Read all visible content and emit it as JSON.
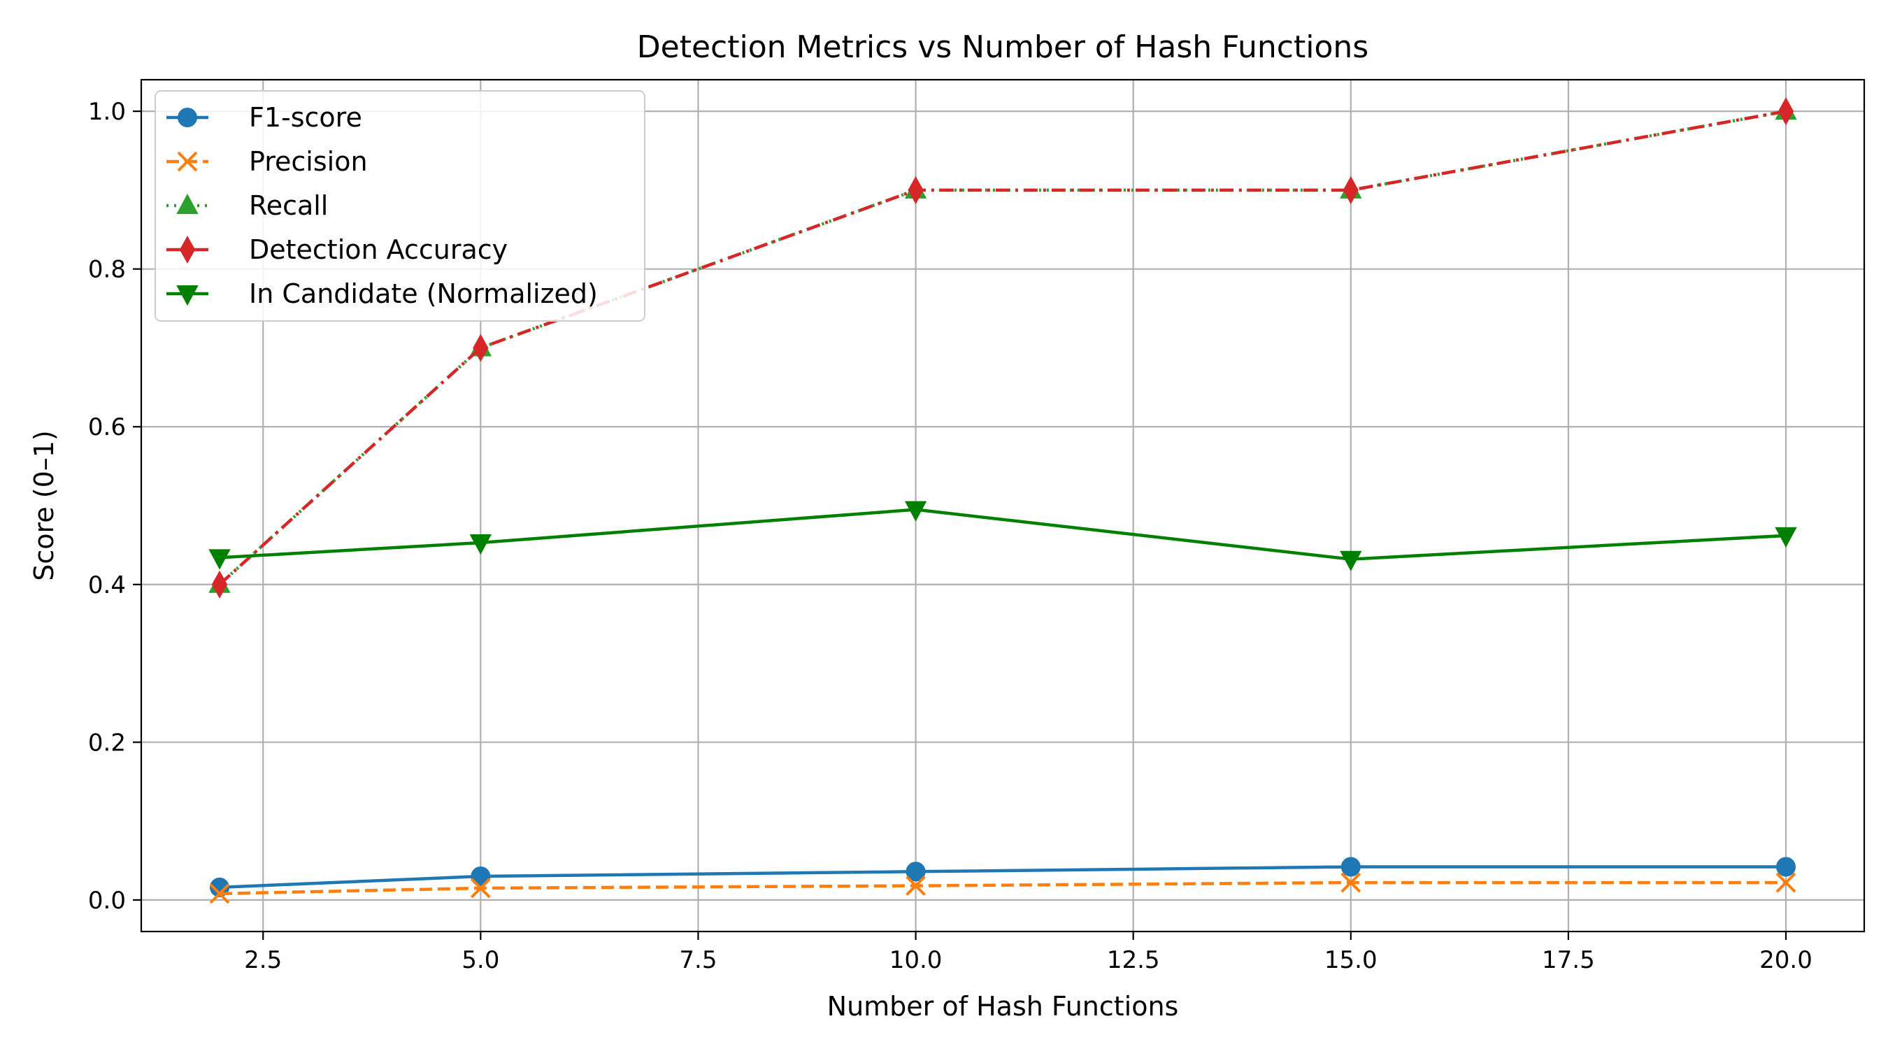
{
  "chart_data": {
    "type": "line",
    "title": "Detection Metrics vs Number of Hash Functions",
    "xlabel": "Number of Hash Functions",
    "ylabel": "Score (0–1)",
    "xlim": [
      1.1,
      20.9
    ],
    "ylim": [
      -0.04,
      1.04
    ],
    "x_ticks": [
      2.5,
      5.0,
      7.5,
      10.0,
      12.5,
      15.0,
      17.5,
      20.0
    ],
    "x_tick_labels": [
      "2.5",
      "5.0",
      "7.5",
      "10.0",
      "12.5",
      "15.0",
      "17.5",
      "20.0"
    ],
    "y_ticks": [
      0.0,
      0.2,
      0.4,
      0.6,
      0.8,
      1.0
    ],
    "y_tick_labels": [
      "0.0",
      "0.2",
      "0.4",
      "0.6",
      "0.8",
      "1.0"
    ],
    "grid": true,
    "legend_position": "top-left",
    "x": [
      2,
      5,
      10,
      15,
      20
    ],
    "series": [
      {
        "name": "F1-score",
        "values": [
          0.016,
          0.03,
          0.036,
          0.042,
          0.042
        ],
        "color": "#1f77b4",
        "dash": "solid",
        "marker": "circle"
      },
      {
        "name": "Precision",
        "values": [
          0.008,
          0.015,
          0.018,
          0.022,
          0.022
        ],
        "color": "#ff7f0e",
        "dash": "dashed",
        "marker": "x"
      },
      {
        "name": "Recall",
        "values": [
          0.4,
          0.7,
          0.9,
          0.9,
          1.0
        ],
        "color": "#2ca02c",
        "dash": "dotted",
        "marker": "triangle-up"
      },
      {
        "name": "Detection Accuracy",
        "values": [
          0.4,
          0.7,
          0.9,
          0.9,
          1.0
        ],
        "color": "#d62728",
        "dash": "dashdot",
        "marker": "diamond"
      },
      {
        "name": "In Candidate (Normalized)",
        "values": [
          0.434,
          0.453,
          0.495,
          0.432,
          0.462
        ],
        "color": "#008000",
        "dash": "solid",
        "marker": "triangle-down"
      }
    ]
  }
}
